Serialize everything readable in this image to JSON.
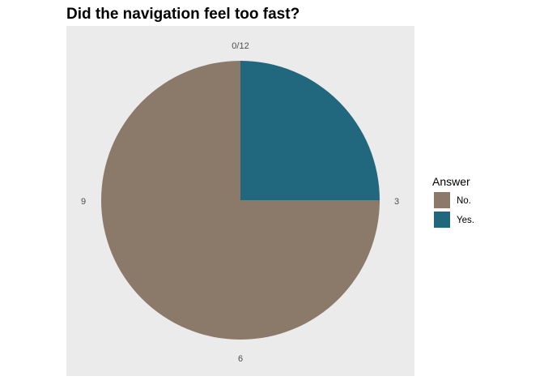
{
  "chart_data": {
    "type": "pie",
    "title": "Did the navigation feel too fast?",
    "categories": [
      "No.",
      "Yes."
    ],
    "values": [
      9,
      3
    ],
    "colors": [
      "#8b7a69",
      "#21677e"
    ],
    "axis_ticks": [
      "0/12",
      "3",
      "6",
      "9"
    ],
    "axis_range": [
      0,
      12
    ],
    "panel_background": "#ebebeb",
    "legend": {
      "title": "Answer",
      "position": "right"
    },
    "grid": false
  }
}
